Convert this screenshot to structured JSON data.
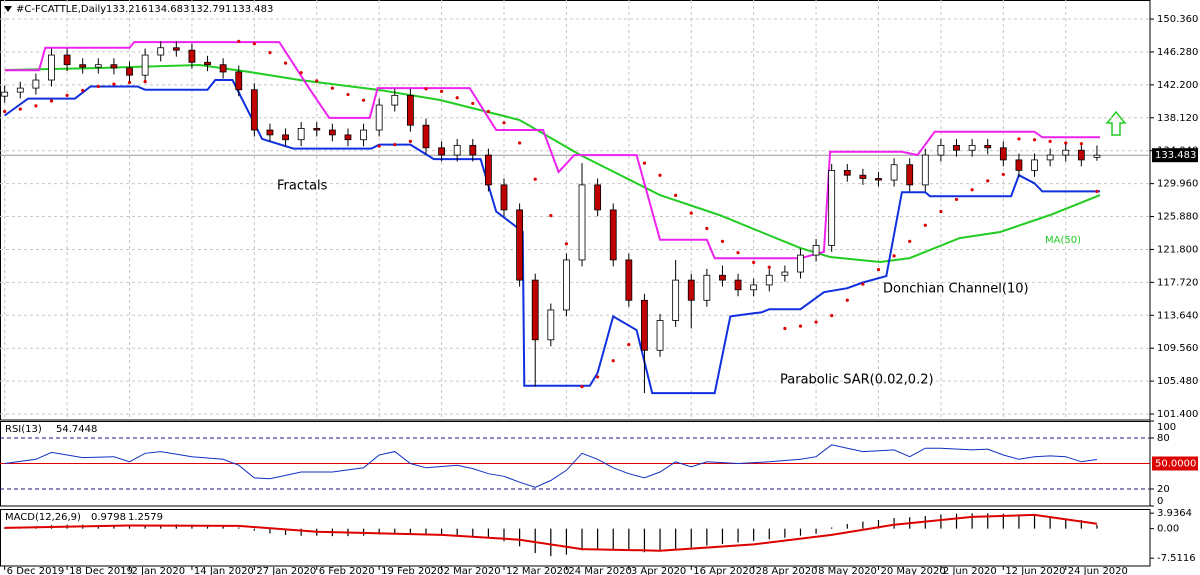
{
  "chart_data": [
    {
      "type": "candlestick",
      "title": "#C-FCATTLE,Daily",
      "x": [
        0,
        1,
        2,
        3,
        4,
        5,
        6,
        7,
        8,
        9,
        10,
        11,
        12,
        13,
        14,
        15,
        16,
        17,
        18,
        19,
        20,
        21,
        22,
        23,
        24,
        25,
        26,
        27,
        28,
        29,
        30,
        31,
        32,
        33,
        34,
        35,
        36,
        37,
        38,
        39,
        40,
        41,
        42,
        43,
        44,
        45,
        46,
        47,
        48,
        49,
        50,
        51,
        52,
        53,
        54,
        55,
        56,
        57,
        58,
        59,
        60,
        61,
        62,
        63,
        64,
        65,
        66,
        67,
        68,
        69,
        70
      ],
      "open": [
        140.8,
        141.3,
        141.8,
        142.8,
        145.9,
        144.7,
        144.4,
        144.7,
        144.3,
        143.4,
        145.9,
        146.8,
        146.5,
        145.0,
        144.7,
        143.8,
        141.6,
        136.6,
        136.0,
        135.4,
        136.8,
        136.6,
        136.0,
        135.4,
        136.6,
        139.7,
        140.9,
        137.2,
        134.4,
        133.5,
        134.7,
        133.5,
        129.8,
        126.7,
        118.0,
        110.6,
        114.3,
        120.5,
        129.8,
        126.7,
        120.5,
        115.5,
        109.3,
        113.0,
        118.0,
        115.5,
        118.6,
        118.0,
        116.8,
        117.4,
        118.6,
        119.0,
        121.1,
        122.3,
        131.6,
        131.0,
        130.6,
        130.4,
        132.3,
        129.8,
        133.5,
        134.7,
        134.1,
        134.7,
        134.4,
        132.9,
        131.6,
        132.9,
        133.5,
        134.1,
        133.216
      ],
      "high": [
        142.1,
        142.6,
        143.6,
        146.7,
        146.7,
        145.5,
        145.5,
        145.5,
        145.1,
        146.7,
        147.6,
        147.6,
        147.3,
        145.8,
        145.5,
        144.6,
        142.4,
        137.4,
        136.8,
        137.6,
        137.6,
        137.4,
        136.8,
        137.4,
        140.5,
        141.7,
        141.7,
        138.0,
        135.2,
        135.5,
        135.5,
        134.3,
        130.6,
        127.5,
        118.8,
        115.1,
        121.3,
        132.5,
        130.6,
        127.5,
        121.3,
        116.3,
        113.8,
        120.5,
        118.8,
        119.4,
        119.8,
        118.8,
        118.2,
        119.4,
        119.8,
        121.9,
        123.1,
        132.4,
        132.4,
        131.8,
        131.4,
        133.1,
        133.1,
        134.3,
        135.5,
        135.5,
        135.5,
        135.5,
        135.2,
        133.7,
        133.7,
        134.3,
        134.9,
        134.9,
        134.683
      ],
      "low": [
        140.0,
        140.5,
        141.0,
        142.0,
        143.9,
        143.6,
        143.6,
        143.5,
        142.6,
        142.6,
        145.1,
        145.7,
        144.2,
        143.9,
        143.0,
        140.8,
        135.8,
        135.2,
        134.6,
        134.6,
        135.8,
        135.2,
        134.6,
        134.6,
        135.8,
        138.9,
        136.4,
        133.6,
        132.7,
        132.7,
        132.7,
        129.0,
        125.9,
        117.2,
        104.8,
        109.8,
        113.5,
        119.7,
        125.9,
        119.7,
        114.7,
        104.0,
        108.5,
        112.2,
        112.0,
        114.7,
        117.2,
        116.0,
        116.0,
        116.6,
        117.8,
        118.2,
        120.3,
        121.5,
        130.2,
        129.8,
        129.6,
        129.6,
        129.0,
        129.0,
        132.7,
        133.3,
        133.3,
        133.6,
        132.1,
        130.8,
        130.8,
        132.1,
        132.7,
        132.1,
        132.791
      ],
      "close": [
        141.3,
        141.8,
        142.8,
        145.9,
        144.7,
        144.4,
        144.7,
        144.3,
        143.4,
        145.9,
        146.8,
        146.5,
        145.0,
        144.7,
        143.8,
        141.6,
        136.6,
        136.0,
        135.4,
        136.8,
        136.6,
        136.0,
        135.4,
        136.6,
        139.7,
        140.9,
        137.2,
        134.4,
        133.5,
        134.7,
        133.5,
        129.8,
        126.7,
        118.0,
        110.6,
        114.3,
        120.5,
        129.8,
        126.7,
        120.5,
        115.5,
        109.3,
        113.0,
        118.0,
        115.5,
        118.6,
        118.0,
        116.8,
        117.4,
        118.6,
        119.0,
        121.1,
        122.3,
        131.6,
        131.0,
        130.6,
        130.4,
        132.3,
        129.8,
        133.5,
        134.7,
        134.1,
        134.7,
        134.4,
        132.9,
        131.6,
        132.9,
        133.5,
        134.1,
        132.9,
        133.483
      ],
      "up_color": "#ffffff",
      "down_color": "#c00000",
      "ma": {
        "name": "MA(50)",
        "color": "#22cc22",
        "x": [
          0,
          6.1,
          12.5,
          15.7,
          18.9,
          24,
          27.9,
          33,
          36.9,
          42,
          45.8,
          51,
          52.9,
          56.1,
          58,
          61.2,
          63.8,
          67,
          70.2
        ],
        "values": [
          144.04,
          144.29,
          144.66,
          143.79,
          142.8,
          141.56,
          140.32,
          137.84,
          133.5,
          128.54,
          126.07,
          121.97,
          120.86,
          120.24,
          120.73,
          123.21,
          123.96,
          126.07,
          128.54
        ]
      },
      "donchian": {
        "name": "Donchian Channel(10)",
        "upper": {
          "color": "#ee22ee",
          "x": [
            0,
            2.2,
            2.6,
            8,
            8.3,
            17.6,
            19.5,
            20.8,
            23.4,
            23.9,
            29.8,
            31.5,
            34.5,
            35.5,
            36.5,
            40.5,
            42,
            45,
            45.5,
            51,
            52.5,
            52.9,
            57.5,
            58.5,
            59.6,
            66,
            66.5,
            70.2
          ],
          "values": [
            144.0,
            144.0,
            146.8,
            146.8,
            147.5,
            147.5,
            141.8,
            138.1,
            138.1,
            141.8,
            141.8,
            136.6,
            136.6,
            131.4,
            133.5,
            133.5,
            123.0,
            123.0,
            120.7,
            120.7,
            121.5,
            133.9,
            133.9,
            133.5,
            136.4,
            136.4,
            135.7,
            135.7
          ]
        },
        "lower": {
          "color": "#1030e0",
          "x": [
            0,
            1.5,
            4.5,
            5.5,
            8.5,
            9,
            13,
            13.5,
            14.6,
            16.5,
            18.5,
            23.5,
            24,
            26,
            27.5,
            30.5,
            31.5,
            33.2,
            33.3,
            37.5,
            38,
            39,
            40.5,
            41.5,
            45.5,
            46.5,
            48,
            48.5,
            49,
            51,
            52.5,
            54,
            55,
            56.5,
            57.5,
            59,
            59.3,
            64.5,
            65,
            66,
            66.5,
            70.2
          ],
          "values": [
            138.4,
            140.5,
            140.5,
            142.0,
            142.0,
            141.6,
            141.6,
            142.8,
            142.8,
            135.5,
            134.3,
            134.3,
            134.8,
            134.8,
            133.0,
            133.0,
            126.5,
            124.0,
            104.9,
            104.9,
            106.5,
            113.5,
            111.8,
            104.0,
            104.0,
            113.5,
            113.9,
            114.0,
            114.4,
            114.4,
            116.5,
            117.0,
            117.7,
            118.5,
            128.9,
            128.9,
            128.4,
            128.4,
            131.0,
            130.0,
            129.0,
            129.0
          ]
        }
      },
      "sar": {
        "name": "Parabolic SAR(0.02,0.2)",
        "color": "#dd0000",
        "x": [
          0,
          1,
          2,
          3,
          4,
          5,
          6,
          7,
          8,
          9,
          15,
          16,
          17,
          18,
          19,
          20,
          21,
          22,
          23,
          24,
          25,
          26,
          27,
          28,
          29,
          30,
          31,
          32,
          33,
          34,
          35,
          36,
          37,
          38,
          39,
          40,
          41,
          42,
          43,
          44,
          45,
          46,
          47,
          48,
          49,
          50,
          51,
          52,
          53,
          54,
          55,
          56,
          57,
          58,
          59,
          60,
          61,
          62,
          63,
          64,
          65,
          66,
          67,
          68,
          69,
          70
        ],
        "values": [
          138.9,
          139.2,
          139.6,
          140.2,
          140.9,
          141.5,
          142.0,
          142.3,
          142.5,
          142.6,
          147.6,
          147.3,
          146.2,
          144.9,
          143.7,
          142.7,
          141.8,
          141.0,
          140.3,
          134.6,
          134.8,
          135.2,
          141.7,
          141.4,
          140.6,
          139.9,
          138.9,
          137.5,
          135.0,
          130.5,
          126.0,
          122.5,
          104.8,
          106.0,
          108.0,
          110.0,
          132.5,
          131.0,
          128.5,
          126.3,
          124.4,
          122.8,
          121.4,
          120.2,
          119.6,
          112.0,
          112.3,
          112.8,
          113.6,
          115.5,
          117.5,
          119.3,
          121.0,
          122.8,
          124.8,
          126.5,
          128.0,
          129.2,
          130.3,
          131.1,
          135.5,
          135.4,
          135.2,
          135.0,
          134.9,
          129.0
        ]
      },
      "fractals_label": "Fractals",
      "xlim": [
        -0.3,
        73.4
      ],
      "ylim": [
        100.66,
        152.72
      ],
      "xticks": [
        {
          "value": 0,
          "label": "6 Dec 2019"
        },
        {
          "value": 4,
          "label": "18 Dec 2019"
        },
        {
          "value": 8,
          "label": "2 Jan 2020"
        },
        {
          "value": 12,
          "label": "14 Jan 2020"
        },
        {
          "value": 16,
          "label": "27 Jan 2020"
        },
        {
          "value": 20,
          "label": "6 Feb 2020"
        },
        {
          "value": 24,
          "label": "19 Feb 2020"
        },
        {
          "value": 28,
          "label": "2 Mar 2020"
        },
        {
          "value": 32,
          "label": "12 Mar 2020"
        },
        {
          "value": 36,
          "label": "24 Mar 2020"
        },
        {
          "value": 40,
          "label": "3 Apr 2020"
        },
        {
          "value": 44,
          "label": "16 Apr 2020"
        },
        {
          "value": 48,
          "label": "28 Apr 2020"
        },
        {
          "value": 52,
          "label": "8 May 2020"
        },
        {
          "value": 56,
          "label": "20 May 2020"
        },
        {
          "value": 60,
          "label": "2 Jun 2020"
        },
        {
          "value": 64,
          "label": "12 Jun 2020"
        },
        {
          "value": 68,
          "label": "24 Jun 2020"
        }
      ],
      "yticks": [
        {
          "value": 150.36,
          "label": "150.360"
        },
        {
          "value": 146.28,
          "label": "146.280"
        },
        {
          "value": 142.2,
          "label": "142.200"
        },
        {
          "value": 138.12,
          "label": "138.120"
        },
        {
          "value": 134.04,
          "label": "134.040"
        },
        {
          "value": 129.96,
          "label": "129.960"
        },
        {
          "value": 125.88,
          "label": "125.880"
        },
        {
          "value": 121.8,
          "label": "121.800"
        },
        {
          "value": 117.72,
          "label": "117.720"
        },
        {
          "value": 113.64,
          "label": "113.640"
        },
        {
          "value": 109.56,
          "label": "109.560"
        },
        {
          "value": 105.48,
          "label": "105.480"
        },
        {
          "value": 101.4,
          "label": "101.400"
        }
      ],
      "grid": true
    },
    {
      "type": "line",
      "title": "RSI(13)",
      "color": "#1030c0",
      "x": [
        0,
        2,
        3,
        5,
        7,
        8,
        9,
        10,
        12,
        14,
        15,
        16,
        17,
        19,
        21,
        23,
        24,
        25,
        26,
        27,
        29,
        30,
        31,
        32,
        33,
        34,
        35,
        36,
        37,
        38,
        39,
        40,
        41,
        42,
        43,
        44,
        45,
        47,
        49,
        51,
        52,
        53,
        54,
        55,
        57,
        58,
        59,
        60,
        62,
        63,
        64,
        65,
        66,
        67,
        68,
        69,
        70
      ],
      "values": [
        50,
        55,
        63,
        57,
        58,
        52,
        62,
        64,
        58,
        55,
        48,
        33,
        32,
        40,
        40,
        45,
        60,
        64,
        50,
        45,
        48,
        44,
        38,
        35,
        28,
        22,
        30,
        42,
        62,
        55,
        45,
        38,
        33,
        40,
        52,
        46,
        52,
        50,
        52,
        55,
        58,
        72,
        68,
        64,
        66,
        58,
        68,
        68,
        66,
        67,
        60,
        55,
        58,
        59,
        58,
        52,
        54.7448
      ],
      "levels": [
        80,
        20
      ],
      "level_color": "#1a1a80",
      "center": {
        "value": 50,
        "label": "50.0000"
      },
      "center_color": "#dd0000",
      "xlim": [
        -0.3,
        73.4
      ],
      "ylim": [
        0,
        100
      ],
      "yticks": [
        100,
        80,
        20,
        0
      ]
    },
    {
      "type": "macd",
      "title": "MACD(12,26,9)",
      "x": [
        0,
        1,
        2,
        3,
        4,
        5,
        6,
        7,
        8,
        9,
        10,
        11,
        12,
        13,
        14,
        15,
        16,
        17,
        18,
        19,
        20,
        21,
        22,
        23,
        24,
        25,
        26,
        27,
        28,
        29,
        30,
        31,
        32,
        33,
        34,
        35,
        36,
        37,
        38,
        39,
        40,
        41,
        42,
        43,
        44,
        45,
        46,
        47,
        48,
        49,
        50,
        51,
        52,
        53,
        54,
        55,
        56,
        57,
        58,
        59,
        60,
        61,
        62,
        63,
        64,
        65,
        66,
        67,
        68,
        69,
        70
      ],
      "values": [
        0.3,
        0.4,
        0.6,
        0.9,
        1.0,
        1.0,
        0.9,
        0.8,
        0.6,
        0.8,
        1.0,
        1.1,
        1.0,
        0.8,
        0.6,
        0.3,
        -0.5,
        -1.2,
        -1.6,
        -1.8,
        -1.8,
        -1.9,
        -1.9,
        -1.8,
        -1.5,
        -1.2,
        -1.3,
        -1.5,
        -1.7,
        -1.8,
        -2.0,
        -2.5,
        -3.2,
        -4.5,
        -6.2,
        -7.0,
        -6.6,
        -5.5,
        -5.2,
        -5.3,
        -5.5,
        -6.0,
        -5.8,
        -5.2,
        -4.8,
        -4.3,
        -3.9,
        -3.5,
        -3.1,
        -2.7,
        -2.3,
        -1.8,
        -1.3,
        0.3,
        1.2,
        1.8,
        2.2,
        2.7,
        2.9,
        3.2,
        3.6,
        3.8,
        3.9,
        3.9,
        3.8,
        3.5,
        3.2,
        2.9,
        2.6,
        2.2,
        0.9798
      ],
      "color": "#000000",
      "signal": {
        "color": "#dd0000",
        "x": [
          0,
          8,
          15,
          20,
          28,
          33,
          37,
          42,
          48,
          53,
          57,
          62,
          66,
          70
        ],
        "values": [
          0.2,
          0.8,
          0.7,
          -0.8,
          -1.6,
          -2.8,
          -5.2,
          -5.6,
          -4.0,
          -1.6,
          1.0,
          3.0,
          3.5,
          1.2579
        ]
      },
      "xlim": [
        -0.3,
        73.4
      ],
      "ylim": [
        -9.5,
        5
      ],
      "yticks": [
        3.9364,
        {
          "value": 0,
          "label": "0.00"
        },
        -7.5116
      ]
    }
  ]
}
